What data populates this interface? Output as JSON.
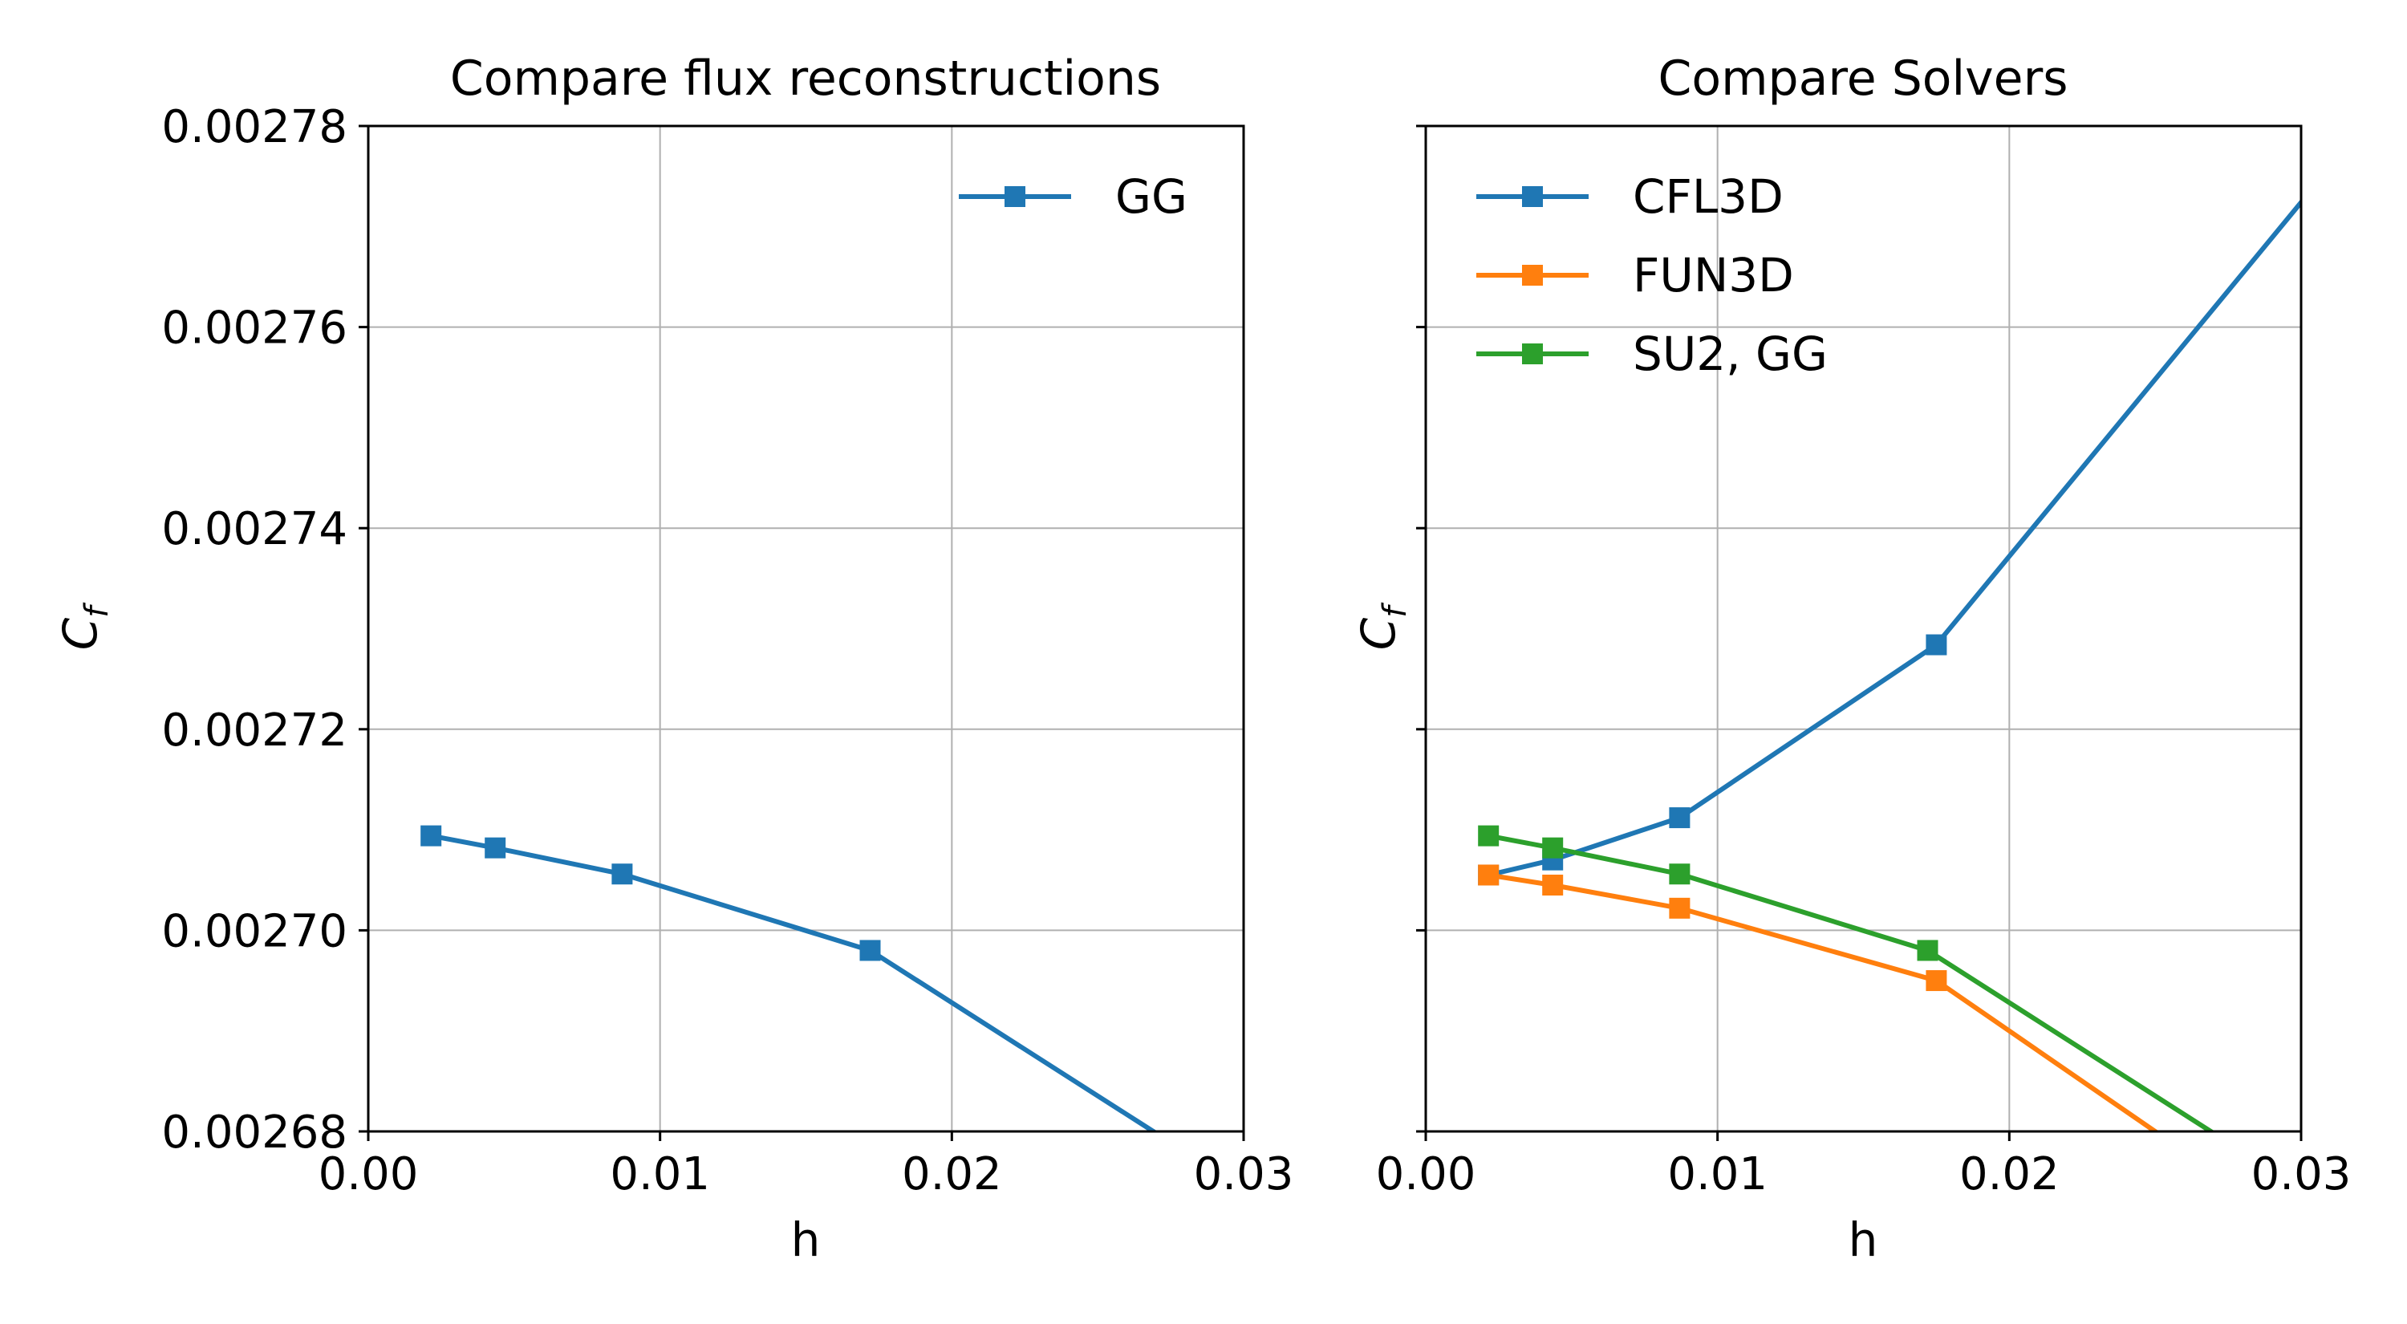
{
  "chart_data": [
    {
      "type": "line",
      "title": "Compare flux reconstructions",
      "xlabel": "h",
      "ylabel": "C",
      "ylabel_subscript": "f",
      "xlim": [
        0.0,
        0.03
      ],
      "ylim": [
        0.00268,
        0.00278
      ],
      "xticks": [
        "0.00",
        "0.01",
        "0.02",
        "0.03"
      ],
      "yticks": [
        "0.00268",
        "0.00270",
        "0.00272",
        "0.00274",
        "0.00276",
        "0.00278"
      ],
      "grid": true,
      "legend_position": "upper-right",
      "series": [
        {
          "name": "GG",
          "color": "#1f77b4",
          "x": [
            0.00215,
            0.00435,
            0.0087,
            0.0172,
            0.035
          ],
          "y": [
            0.0027094,
            0.0027082,
            0.0027056,
            0.002698,
            0.002665
          ],
          "markers": [
            true,
            true,
            true,
            true,
            false
          ]
        }
      ]
    },
    {
      "type": "line",
      "title": "Compare Solvers",
      "xlabel": "h",
      "ylabel": "C",
      "ylabel_subscript": "f",
      "xlim": [
        0.0,
        0.03
      ],
      "ylim": [
        0.00268,
        0.00278
      ],
      "xticks": [
        "0.00",
        "0.01",
        "0.02",
        "0.03"
      ],
      "yticks": [],
      "grid": true,
      "legend_position": "upper-left",
      "series": [
        {
          "name": "CFL3D",
          "color": "#1f77b4",
          "x": [
            0.00215,
            0.00435,
            0.0087,
            0.0175,
            0.035
          ],
          "y": [
            0.0027055,
            0.002707,
            0.0027112,
            0.0027284,
            0.00279
          ],
          "markers": [
            true,
            true,
            true,
            true,
            false
          ]
        },
        {
          "name": "FUN3D",
          "color": "#ff7f0e",
          "x": [
            0.00215,
            0.00435,
            0.0087,
            0.0175,
            0.035
          ],
          "y": [
            0.0027055,
            0.0027045,
            0.0027022,
            0.002695,
            0.00266
          ],
          "markers": [
            true,
            true,
            true,
            true,
            false
          ]
        },
        {
          "name": "SU2, GG",
          "color": "#2ca02c",
          "x": [
            0.00215,
            0.00435,
            0.0087,
            0.0172,
            0.035
          ],
          "y": [
            0.0027094,
            0.0027082,
            0.0027056,
            0.002698,
            0.002665
          ],
          "markers": [
            true,
            true,
            true,
            true,
            false
          ]
        }
      ]
    }
  ]
}
